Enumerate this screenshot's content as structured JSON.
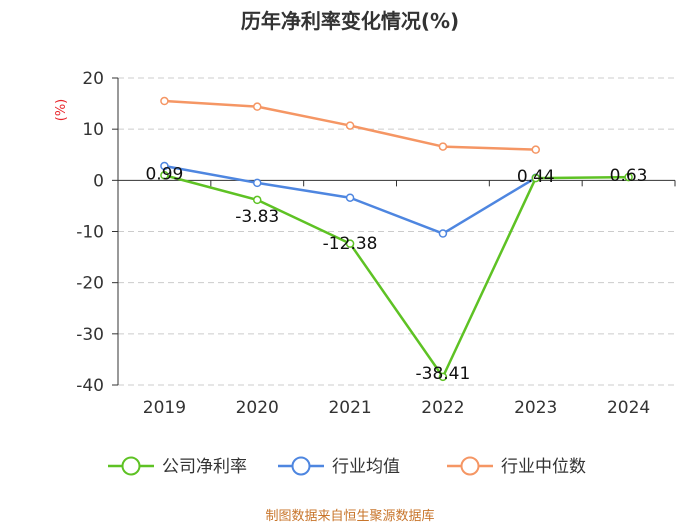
{
  "chart_data": {
    "type": "line",
    "title": "历年净利率变化情况(%)",
    "ylabel": "(%)",
    "xlabel": "",
    "categories": [
      "2019",
      "2020",
      "2021",
      "2022",
      "2023",
      "2024"
    ],
    "ylim": [
      -40,
      20
    ],
    "yticks": [
      "20",
      "10",
      "0",
      "-10",
      "-20",
      "-30",
      "-40"
    ],
    "grid": true,
    "legend_position": "bottom",
    "series": [
      {
        "name": "公司净利率",
        "color": "#5ec224",
        "values": [
          0.99,
          -3.83,
          -12.38,
          -38.41,
          0.44,
          0.63
        ],
        "labels": [
          "0.99",
          "-3.83",
          "-12.38",
          "-38.41",
          "0.44",
          "0.63"
        ]
      },
      {
        "name": "行业均值",
        "color": "#4e86e0",
        "values": [
          2.8,
          -0.5,
          -3.4,
          -10.4,
          0.5,
          null
        ]
      },
      {
        "name": "行业中位数",
        "color": "#f59664",
        "values": [
          15.5,
          14.4,
          10.7,
          6.6,
          6.0,
          null
        ]
      }
    ],
    "source": "制图数据来自恒生聚源数据库"
  }
}
